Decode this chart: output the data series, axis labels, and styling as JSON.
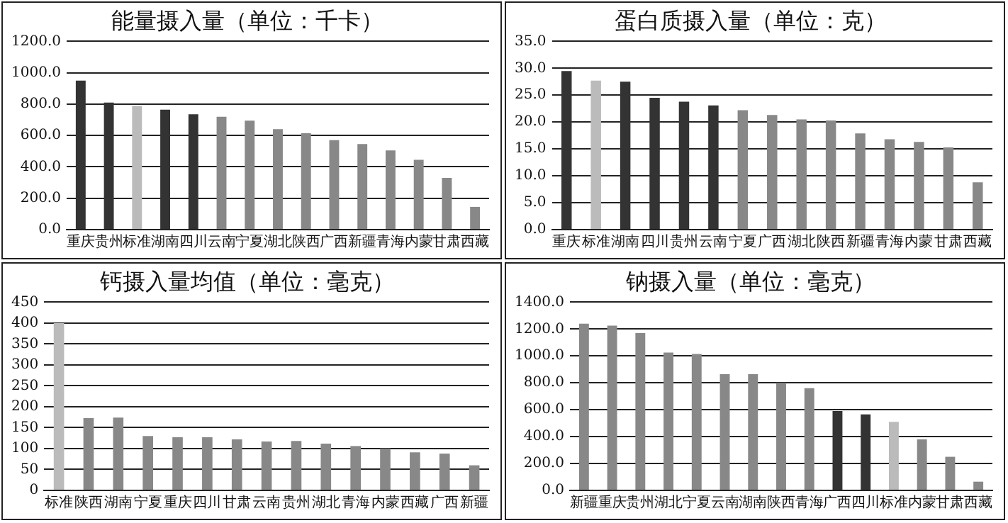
{
  "chart_data": [
    {
      "type": "bar",
      "title": "能量摄入量（单位：千卡）",
      "categories": [
        "重庆",
        "贵州",
        "标准",
        "湖南",
        "四川",
        "云南",
        "宁夏",
        "湖北",
        "陕西",
        "广西",
        "新疆",
        "青海",
        "内蒙",
        "甘肃",
        "西藏"
      ],
      "values": [
        950,
        810,
        790,
        765,
        735,
        720,
        695,
        640,
        615,
        570,
        545,
        505,
        445,
        330,
        145
      ],
      "colors": [
        "#333333",
        "#333333",
        "#bbbbbb",
        "#333333",
        "#333333",
        "#888888",
        "#888888",
        "#888888",
        "#888888",
        "#888888",
        "#888888",
        "#888888",
        "#888888",
        "#888888",
        "#888888"
      ],
      "ylim": [
        0,
        1200
      ],
      "yticks": [
        {
          "value": 0,
          "label": "0.0"
        },
        {
          "value": 200,
          "label": "200.0"
        },
        {
          "value": 400,
          "label": "400.0"
        },
        {
          "value": 600,
          "label": "600.0"
        },
        {
          "value": 800,
          "label": "800.0"
        },
        {
          "value": 1000,
          "label": "1000.0"
        },
        {
          "value": 1200,
          "label": "1200.0"
        }
      ],
      "grid": "y",
      "legend": false
    },
    {
      "type": "bar",
      "title": "蛋白质摄入量（单位：克）",
      "categories": [
        "重庆",
        "标准",
        "湖南",
        "四川",
        "贵州",
        "云南",
        "宁夏",
        "广西",
        "湖北",
        "陕西",
        "新疆",
        "青海",
        "内蒙",
        "甘肃",
        "西藏"
      ],
      "values": [
        29.5,
        27.7,
        27.5,
        24.5,
        23.8,
        23.1,
        22.2,
        21.3,
        20.5,
        20.3,
        17.9,
        16.8,
        16.3,
        15.3,
        8.8
      ],
      "colors": [
        "#333333",
        "#bbbbbb",
        "#333333",
        "#333333",
        "#333333",
        "#333333",
        "#888888",
        "#888888",
        "#888888",
        "#888888",
        "#888888",
        "#888888",
        "#888888",
        "#888888",
        "#888888"
      ],
      "ylim": [
        0,
        35
      ],
      "yticks": [
        {
          "value": 0,
          "label": "0.0"
        },
        {
          "value": 5,
          "label": "5.0"
        },
        {
          "value": 10,
          "label": "10.0"
        },
        {
          "value": 15,
          "label": "15.0"
        },
        {
          "value": 20,
          "label": "20.0"
        },
        {
          "value": 25,
          "label": "25.0"
        },
        {
          "value": 30,
          "label": "30.0"
        },
        {
          "value": 35,
          "label": "35.0"
        }
      ],
      "grid": "y",
      "legend": false
    },
    {
      "type": "bar",
      "title": "钙摄入量均值（单位：毫克）",
      "categories": [
        "标准",
        "陕西",
        "湖南",
        "宁夏",
        "重庆",
        "四川",
        "甘肃",
        "云南",
        "贵州",
        "湖北",
        "青海",
        "内蒙",
        "西藏",
        "广西",
        "新疆"
      ],
      "values": [
        400,
        173,
        174,
        130,
        127,
        127,
        122,
        117,
        118,
        112,
        106,
        100,
        91,
        88,
        60
      ],
      "colors": [
        "#bbbbbb",
        "#888888",
        "#888888",
        "#888888",
        "#888888",
        "#888888",
        "#888888",
        "#888888",
        "#888888",
        "#888888",
        "#888888",
        "#888888",
        "#888888",
        "#888888",
        "#888888"
      ],
      "ylim": [
        0,
        450
      ],
      "yticks": [
        0,
        50,
        100,
        150,
        200,
        250,
        300,
        350,
        400,
        450
      ],
      "grid": "y",
      "legend": false
    },
    {
      "type": "bar",
      "title": "钠摄入量（单位：毫克）",
      "categories": [
        "新疆",
        "重庆",
        "贵州",
        "湖北",
        "宁夏",
        "云南",
        "湖南",
        "陕西",
        "青海",
        "广西",
        "四川",
        "标准",
        "内蒙",
        "甘肃",
        "西藏"
      ],
      "values": [
        1240,
        1225,
        1170,
        1025,
        1015,
        865,
        865,
        800,
        760,
        590,
        565,
        510,
        380,
        250,
        65
      ],
      "colors": [
        "#888888",
        "#888888",
        "#888888",
        "#888888",
        "#888888",
        "#888888",
        "#888888",
        "#888888",
        "#888888",
        "#333333",
        "#333333",
        "#bbbbbb",
        "#888888",
        "#888888",
        "#888888"
      ],
      "ylim": [
        0,
        1400
      ],
      "yticks": [
        {
          "value": 0,
          "label": "0.0"
        },
        {
          "value": 200,
          "label": "200.0"
        },
        {
          "value": 400,
          "label": "400.0"
        },
        {
          "value": 600,
          "label": "600.0"
        },
        {
          "value": 800,
          "label": "800.0"
        },
        {
          "value": 1000,
          "label": "1000.0"
        },
        {
          "value": 1200,
          "label": "1200.0"
        },
        {
          "value": 1400,
          "label": "1400.0"
        }
      ],
      "grid": "y",
      "legend": false
    }
  ]
}
